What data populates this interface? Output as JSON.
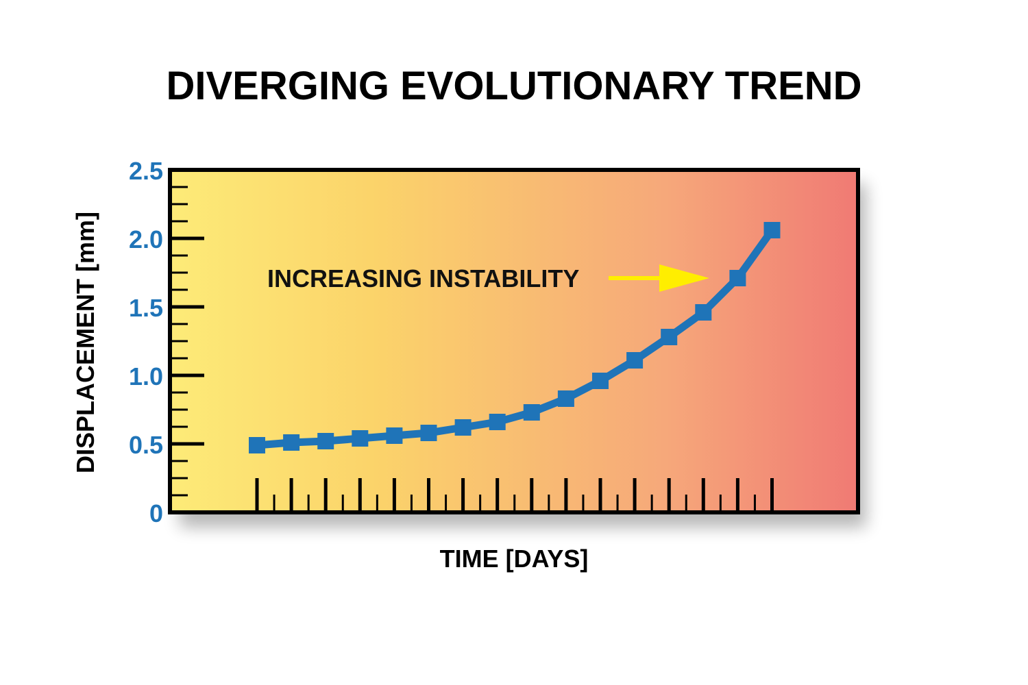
{
  "chart_data": {
    "type": "line",
    "title": "DIVERGING EVOLUTIONARY TREND",
    "xlabel": "TIME [DAYS]",
    "ylabel": "DISPLACEMENT [mm]",
    "ylim": [
      0,
      2.5
    ],
    "yticks": [
      "0",
      "0.5",
      "1.0",
      "1.5",
      "2.0",
      "2.5"
    ],
    "x": [
      1,
      2,
      3,
      4,
      5,
      6,
      7,
      8,
      9,
      10,
      11,
      12,
      13,
      14,
      15,
      16
    ],
    "series": [
      {
        "values": [
          0.49,
          0.51,
          0.52,
          0.54,
          0.56,
          0.58,
          0.62,
          0.66,
          0.73,
          0.83,
          0.96,
          1.11,
          1.28,
          1.46,
          1.71,
          2.06
        ],
        "color": "#1f74b8"
      }
    ],
    "annotation": {
      "text": "INCREASING INSTABILITY",
      "arrow_color": "#ffee00"
    },
    "grid": false,
    "background_gradient": [
      "#fdeb78",
      "#fbd36a",
      "#f6a87a",
      "#f07a74"
    ],
    "tick_label_color": "#1f74b8"
  }
}
